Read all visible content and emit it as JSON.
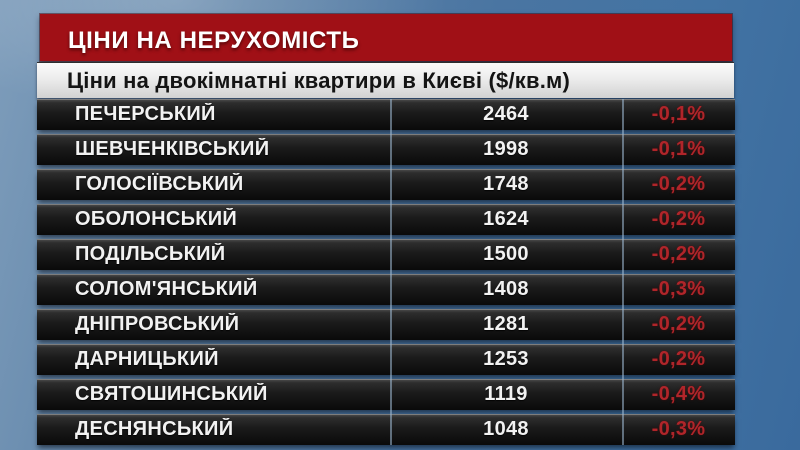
{
  "page": {
    "title_bar": "ЦІНИ НА НЕРУХОМІСТЬ",
    "subtitle": "Ціни на двокімнатні квартири в Києві ($/кв.м)"
  },
  "table": {
    "rows": [
      {
        "district": "ПЕЧЕРСЬКИЙ",
        "price": "2464",
        "change": "-0,1%"
      },
      {
        "district": "ШЕВЧЕНКІВСЬКИЙ",
        "price": "1998",
        "change": "-0,1%"
      },
      {
        "district": "ГОЛОСІЇВСЬКИЙ",
        "price": "1748",
        "change": "-0,2%"
      },
      {
        "district": "ОБОЛОНСЬКИЙ",
        "price": "1624",
        "change": "-0,2%"
      },
      {
        "district": "ПОДІЛЬСЬКИЙ",
        "price": "1500",
        "change": "-0,2%"
      },
      {
        "district": "СОЛОМ'ЯНСЬКИЙ",
        "price": "1408",
        "change": "-0,3%"
      },
      {
        "district": "ДНІПРОВСЬКИЙ",
        "price": "1281",
        "change": "-0,2%"
      },
      {
        "district": "ДАРНИЦЬКИЙ",
        "price": "1253",
        "change": "-0,2%"
      },
      {
        "district": "СВЯТОШИНСЬКИЙ",
        "price": "1119",
        "change": "-0,4%"
      },
      {
        "district": "ДЕСНЯНСЬКИЙ",
        "price": "1048",
        "change": "-0,3%"
      }
    ]
  },
  "colors": {
    "accent_red": "#a01016",
    "change_red": "#b0252a",
    "background_blue": "#4a75a2",
    "row_dark": "#141414",
    "subtitle_bg": "#ececec"
  },
  "chart_data": {
    "type": "table",
    "title": "Ціни на двокімнатні квартири в Києві ($/кв.м)",
    "categories": [
      "ПЕЧЕРСЬКИЙ",
      "ШЕВЧЕНКІВСЬКИЙ",
      "ГОЛОСІЇВСЬКИЙ",
      "ОБОЛОНСЬКИЙ",
      "ПОДІЛЬСЬКИЙ",
      "СОЛОМ'ЯНСЬКИЙ",
      "ДНІПРОВСЬКИЙ",
      "ДАРНИЦЬКИЙ",
      "СВЯТОШИНСЬКИЙ",
      "ДЕСНЯНСЬКИЙ"
    ],
    "series": [
      {
        "name": "price_usd_per_sqm",
        "values": [
          2464,
          1998,
          1748,
          1624,
          1500,
          1408,
          1281,
          1253,
          1119,
          1048
        ]
      },
      {
        "name": "change_percent",
        "values": [
          "-0,1%",
          "-0,1%",
          "-0,2%",
          "-0,2%",
          "-0,2%",
          "-0,3%",
          "-0,2%",
          "-0,2%",
          "-0,4%",
          "-0,3%"
        ]
      }
    ]
  }
}
